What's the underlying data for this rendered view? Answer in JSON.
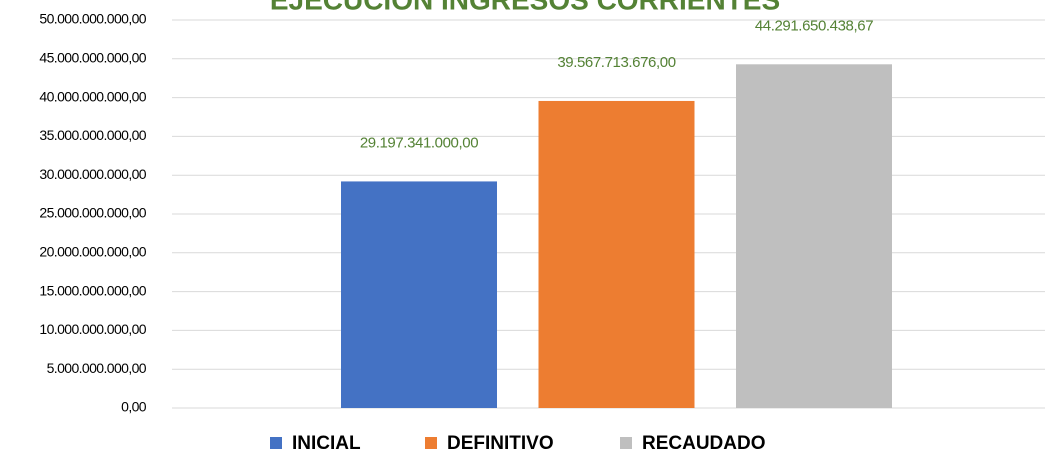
{
  "chart_data": {
    "type": "bar",
    "title": "EJECUCIÓN INGRESOS CORRIENTES",
    "series": [
      {
        "name": "INICIAL",
        "color": "#4472c4",
        "values": [
          29197341000
        ],
        "value_labels": [
          "29.197.341.000,00"
        ]
      },
      {
        "name": "DEFINITIVO",
        "color": "#ed7d31",
        "values": [
          39567713676
        ],
        "value_labels": [
          "39.567.713.676,00"
        ]
      },
      {
        "name": "RECAUDADO",
        "color": "#bfbfbf",
        "values": [
          44291650438.67
        ],
        "value_labels": [
          "44.291.650.438,67"
        ]
      }
    ],
    "ylim": [
      0,
      50000000000
    ],
    "yticks": [
      {
        "value": 0,
        "label": "0,00"
      },
      {
        "value": 5000000000,
        "label": "5.000.000.000,00"
      },
      {
        "value": 10000000000,
        "label": "10.000.000.000,00"
      },
      {
        "value": 15000000000,
        "label": "15.000.000.000,00"
      },
      {
        "value": 20000000000,
        "label": "20.000.000.000,00"
      },
      {
        "value": 25000000000,
        "label": "25.000.000.000,00"
      },
      {
        "value": 30000000000,
        "label": "30.000.000.000,00"
      },
      {
        "value": 35000000000,
        "label": "35.000.000.000,00"
      },
      {
        "value": 40000000000,
        "label": "40.000.000.000,00"
      },
      {
        "value": 45000000000,
        "label": "45.000.000.000,00"
      },
      {
        "value": 50000000000,
        "label": "50.000.000.000,00"
      }
    ],
    "grid": true,
    "legend": "bottom"
  }
}
